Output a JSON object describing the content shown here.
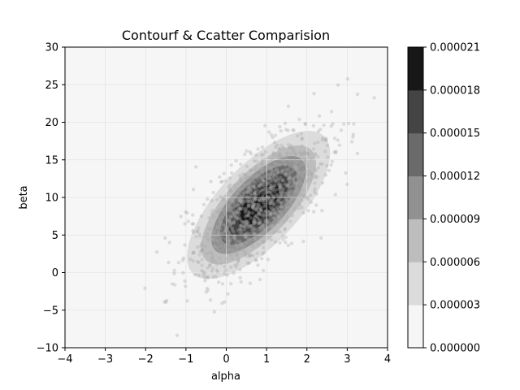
{
  "chart_data": {
    "type": "contourf+scatter",
    "title": "Contourf & Ccatter Comparision",
    "xlabel": "alpha",
    "ylabel": "beta",
    "xlim": [
      -4,
      4
    ],
    "ylim": [
      -10,
      30
    ],
    "grid": true,
    "x_ticks": [
      "−4",
      "−3",
      "−2",
      "−1",
      "0",
      "1",
      "2",
      "3",
      "4"
    ],
    "y_ticks": [
      "−10",
      "−5",
      "0",
      "5",
      "10",
      "15",
      "20",
      "25",
      "30"
    ],
    "x_tick_values": [
      -4,
      -3,
      -2,
      -1,
      0,
      1,
      2,
      3,
      4
    ],
    "y_tick_values": [
      -10,
      -5,
      0,
      5,
      10,
      15,
      20,
      25,
      30
    ],
    "distribution": {
      "mean": [
        0.8,
        9.0
      ],
      "std": [
        0.9,
        5.0
      ],
      "correlation": 0.7,
      "n_points": 1000
    },
    "contour_levels": [
      0.0,
      3e-06,
      6e-06,
      9e-06,
      1.2e-05,
      1.5e-05,
      1.8e-05,
      2.1e-05
    ],
    "level_colors": [
      "#f6f6f6",
      "#dcdcdc",
      "#bdbdbd",
      "#919191",
      "#6a6a6a",
      "#444444",
      "#171717"
    ],
    "scatter_color": "#aaaaaa",
    "colorbar_ticks": [
      "0.000000",
      "0.000003",
      "0.000006",
      "0.000009",
      "0.000012",
      "0.000015",
      "0.000018",
      "0.000021"
    ]
  }
}
